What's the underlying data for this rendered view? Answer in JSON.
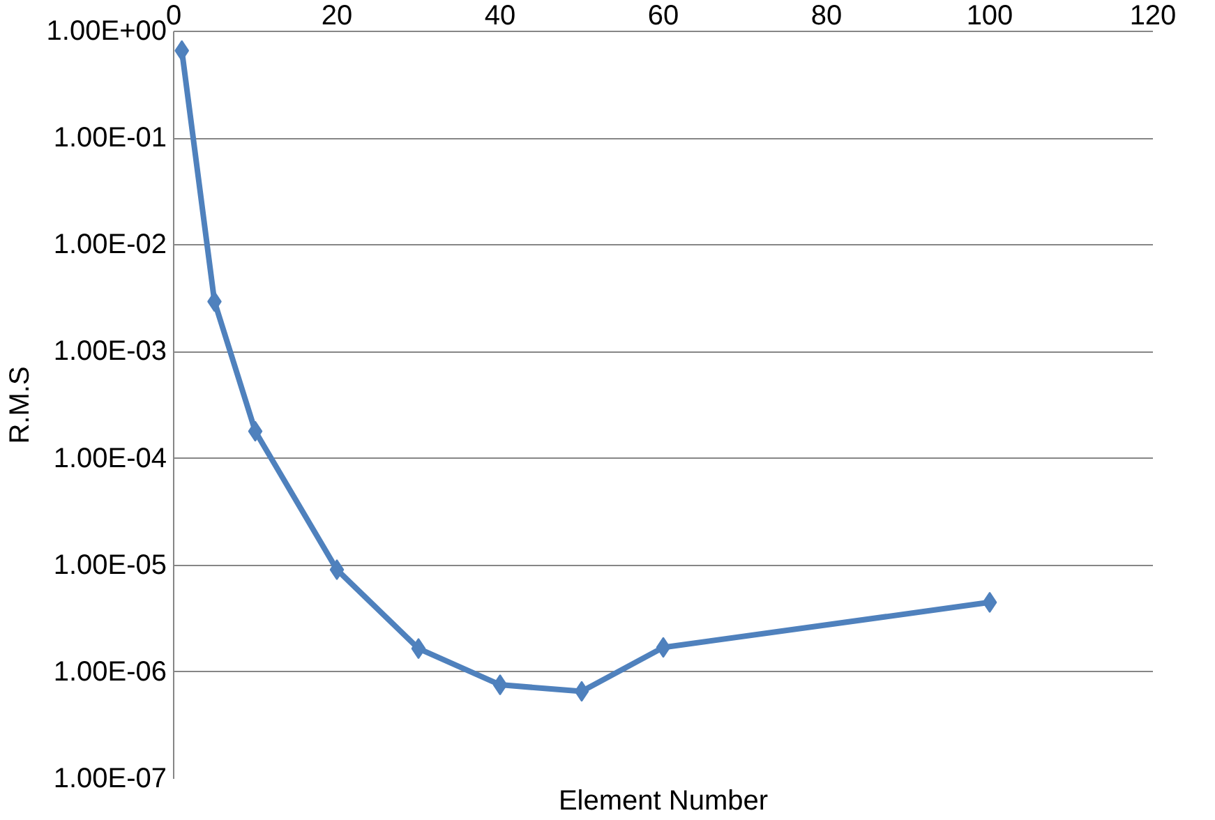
{
  "chart_data": {
    "type": "line",
    "xlabel": "Element Number",
    "ylabel": "R.M.S",
    "x": [
      1,
      5,
      10,
      20,
      30,
      40,
      50,
      60,
      100
    ],
    "series": [
      {
        "color": "#4f81bd",
        "values": [
          0.66,
          0.00295,
          0.00018,
          9.1e-06,
          1.66e-06,
          7.6e-07,
          6.6e-07,
          1.7e-06,
          4.5e-06
        ]
      }
    ],
    "xlim": [
      0,
      120
    ],
    "xticks": [
      0,
      20,
      40,
      60,
      80,
      100,
      120
    ],
    "ylim": [
      1e-07,
      1
    ],
    "yticks": [
      {
        "value": 1,
        "label": "1.00E+00"
      },
      {
        "value": 0.1,
        "label": "1.00E-01"
      },
      {
        "value": 0.01,
        "label": "1.00E-02"
      },
      {
        "value": 0.001,
        "label": "1.00E-03"
      },
      {
        "value": 0.0001,
        "label": "1.00E-04"
      },
      {
        "value": 1e-05,
        "label": "1.00E-05"
      },
      {
        "value": 1e-06,
        "label": "1.00E-06"
      },
      {
        "value": 1e-07,
        "label": "1.00E-07"
      }
    ],
    "log": "y",
    "grid": "y",
    "marker": "diamond",
    "line_style": "solid"
  }
}
